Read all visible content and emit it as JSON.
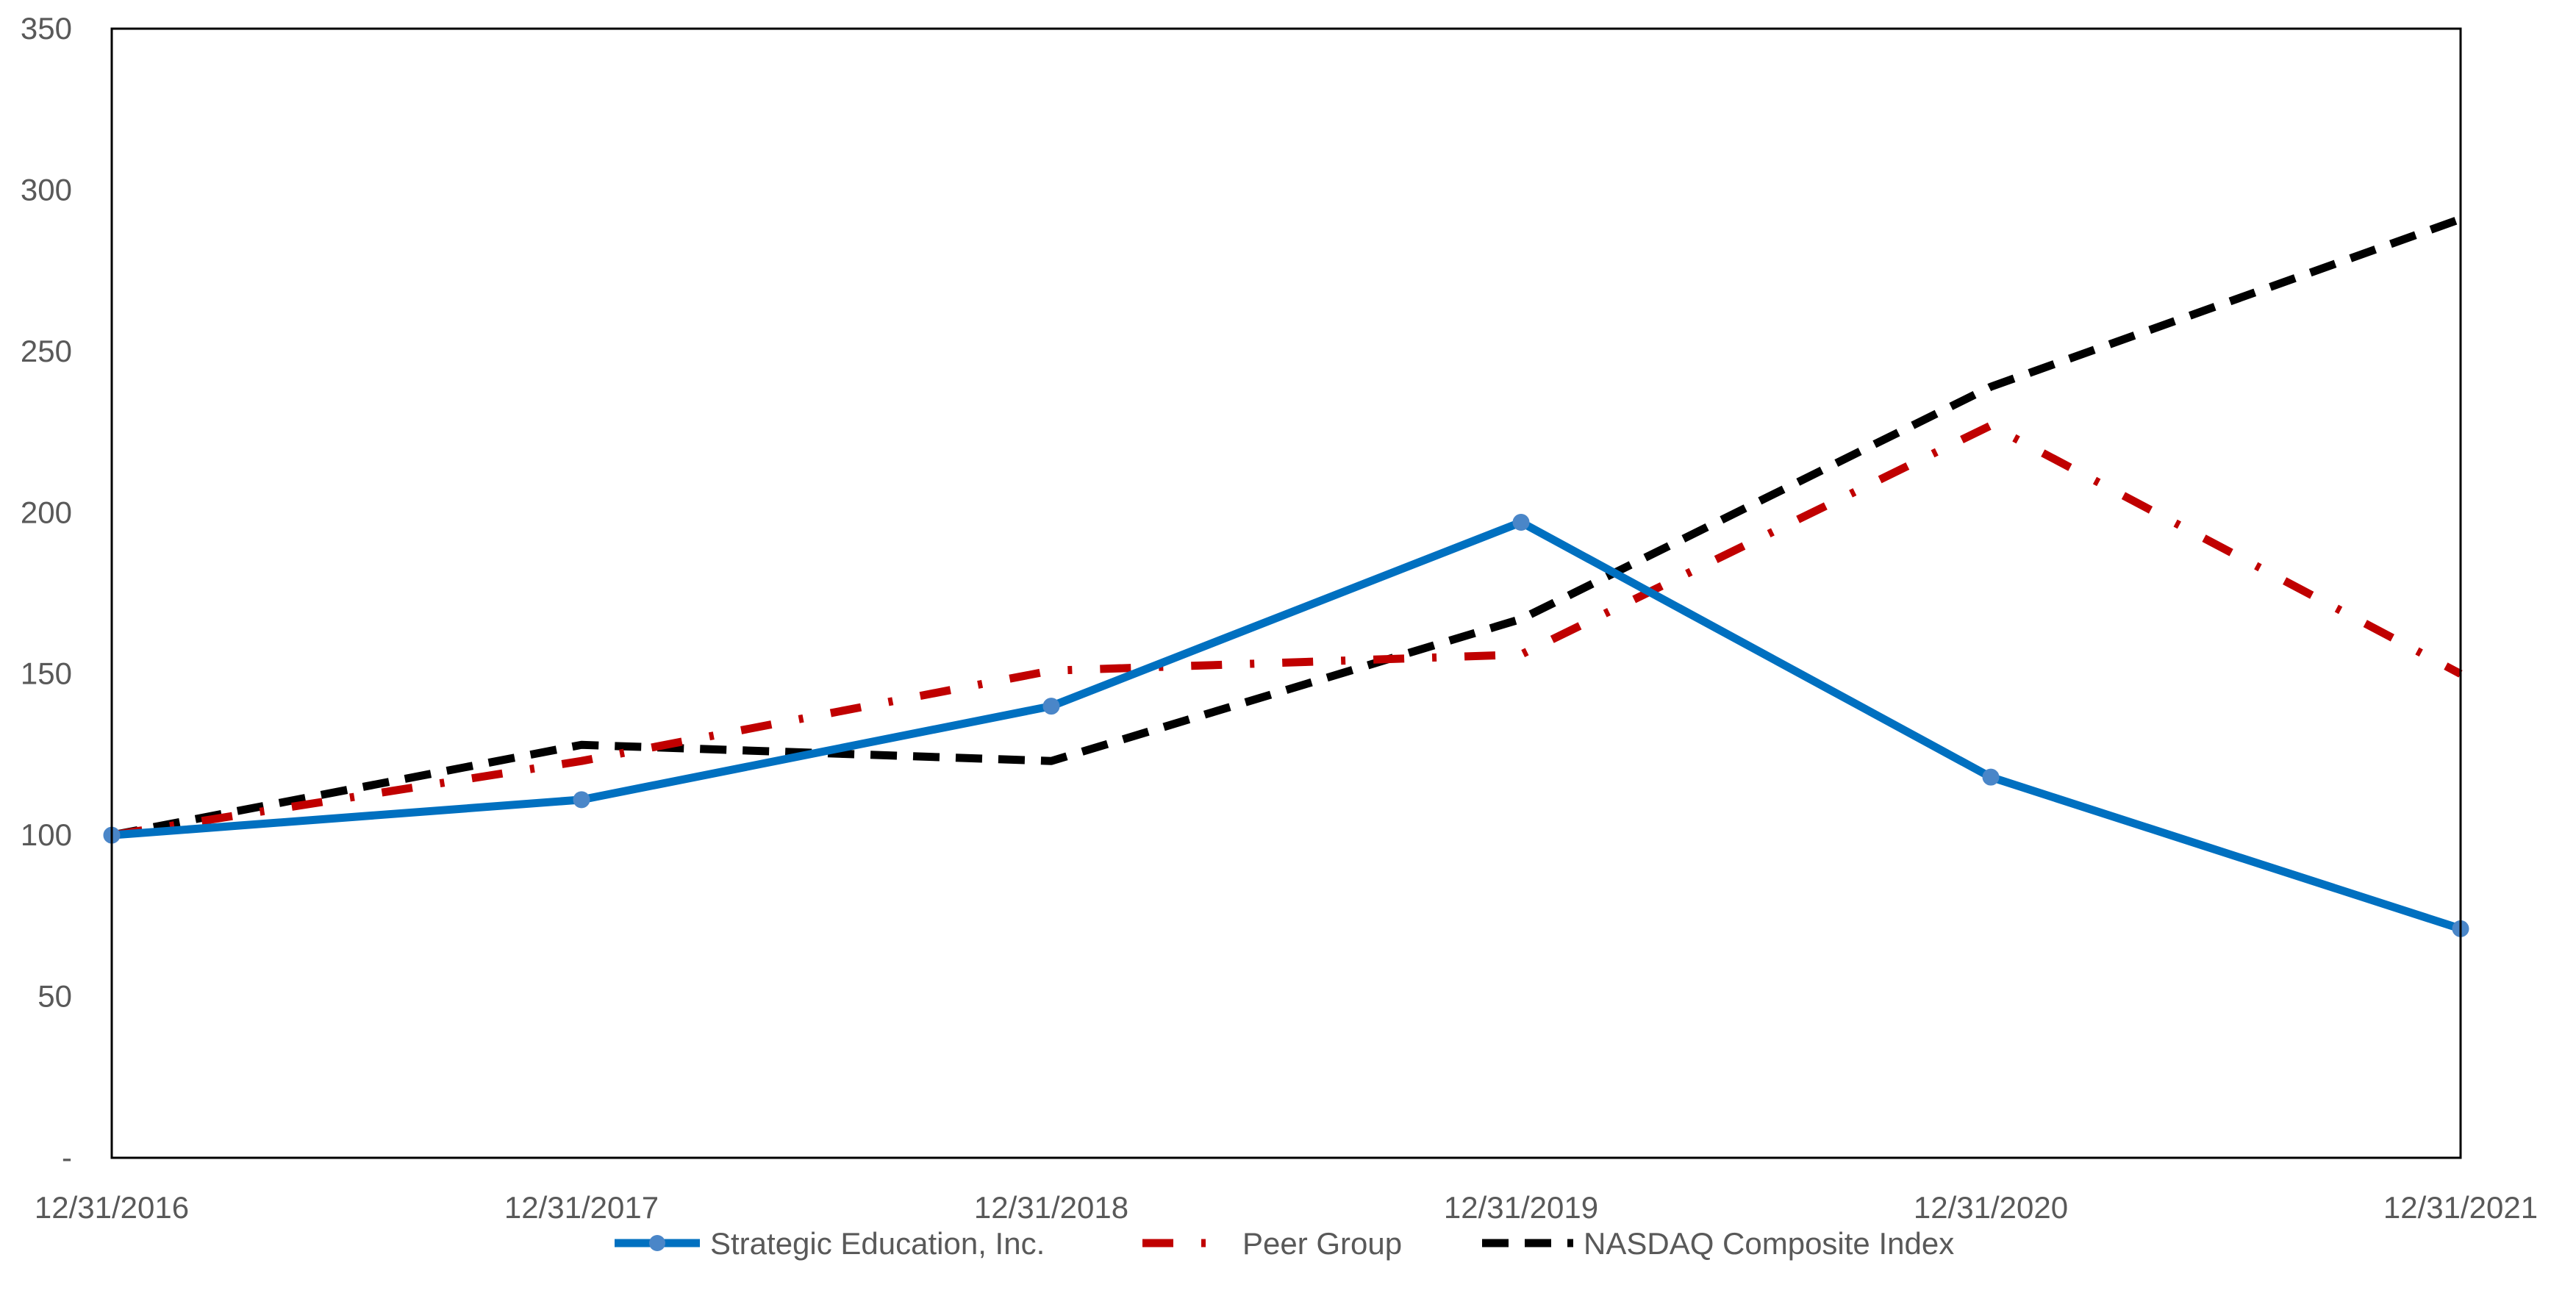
{
  "chart_data": {
    "type": "line",
    "title": "",
    "xlabel": "",
    "ylabel": "",
    "categories": [
      "12/31/2016",
      "12/31/2017",
      "12/31/2018",
      "12/31/2019",
      "12/31/2020",
      "12/31/2021"
    ],
    "ylim": [
      0,
      350
    ],
    "yticks": [
      0,
      50,
      100,
      150,
      200,
      250,
      300,
      350
    ],
    "ytick_labels": [
      "-",
      "50",
      "100",
      "150",
      "200",
      "250",
      "300",
      "350"
    ],
    "grid": false,
    "legend_position": "bottom",
    "series": [
      {
        "name": "Strategic Education, Inc.",
        "values": [
          100,
          111,
          140,
          197,
          118,
          71
        ],
        "color": "#0070c0",
        "line_style": "solid",
        "markers": "circle"
      },
      {
        "name": "Peer Group",
        "values": [
          100,
          123,
          151,
          156,
          227,
          150
        ],
        "color": "#c00000",
        "line_style": "dash-dot",
        "markers": "none"
      },
      {
        "name": "NASDAQ Composite Index",
        "values": [
          100,
          128,
          123,
          167,
          239,
          291
        ],
        "color": "#000000",
        "line_style": "dashed",
        "markers": "none"
      }
    ]
  }
}
